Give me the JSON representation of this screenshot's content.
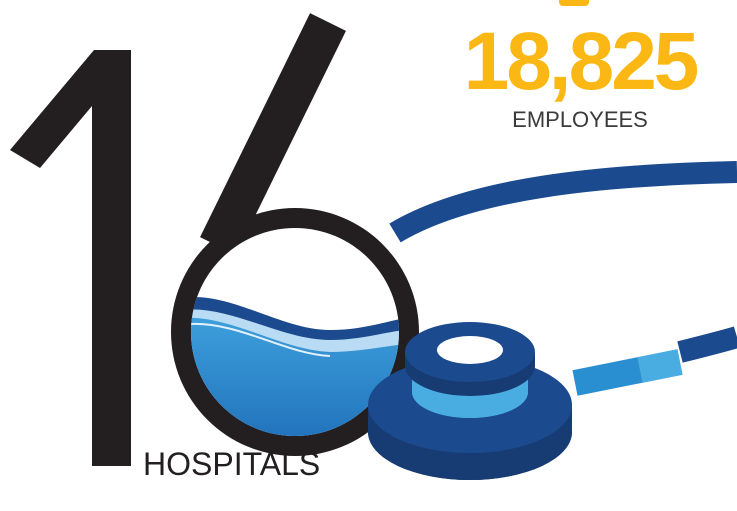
{
  "hospitals": {
    "number": "16",
    "label": "HOSPITALS"
  },
  "employees": {
    "number": "18,825",
    "label": "EMPLOYEES"
  },
  "colors": {
    "number_black": "#231f20",
    "accent_yellow": "#fbb714",
    "navy": "#1b4a8f",
    "navy_dark": "#173c73",
    "light_blue": "#49ade2",
    "water_blue": "#3d9fdc",
    "water_light": "#b9dbf4"
  },
  "icons": {
    "stethoscope": "stethoscope-icon",
    "water": "water-wave-icon"
  }
}
